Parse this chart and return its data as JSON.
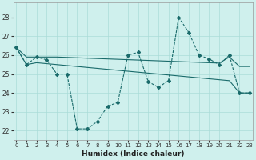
{
  "xlabel": "Humidex (Indice chaleur)",
  "background_color": "#cff0ed",
  "line_color": "#1a6b6b",
  "grid_color": "#aadcd8",
  "x_ticks": [
    0,
    1,
    2,
    3,
    4,
    5,
    6,
    7,
    8,
    9,
    10,
    11,
    12,
    13,
    14,
    15,
    16,
    17,
    18,
    19,
    20,
    21,
    22,
    23
  ],
  "y_ticks": [
    22,
    23,
    24,
    25,
    26,
    27,
    28
  ],
  "ylim": [
    21.5,
    28.8
  ],
  "xlim": [
    -0.3,
    23.3
  ],
  "line1_y": [
    26.4,
    25.5,
    25.9,
    25.75,
    25.0,
    25.0,
    22.1,
    22.1,
    22.5,
    23.3,
    23.5,
    26.0,
    26.15,
    24.6,
    24.3,
    24.65,
    28.0,
    27.2,
    26.0,
    25.8,
    25.5,
    26.0,
    24.0,
    24.0
  ],
  "line2_y": [
    26.4,
    25.9,
    25.9,
    25.9,
    25.9,
    25.88,
    25.86,
    25.84,
    25.82,
    25.8,
    25.78,
    25.76,
    25.74,
    25.72,
    25.7,
    25.68,
    25.66,
    25.64,
    25.62,
    25.6,
    25.58,
    25.9,
    25.4,
    25.4
  ],
  "line3_y": [
    26.4,
    25.5,
    25.6,
    25.55,
    25.5,
    25.45,
    25.4,
    25.35,
    25.3,
    25.25,
    25.2,
    25.15,
    25.1,
    25.05,
    25.0,
    24.95,
    24.9,
    24.85,
    24.8,
    24.75,
    24.7,
    24.65,
    24.0,
    24.0
  ]
}
